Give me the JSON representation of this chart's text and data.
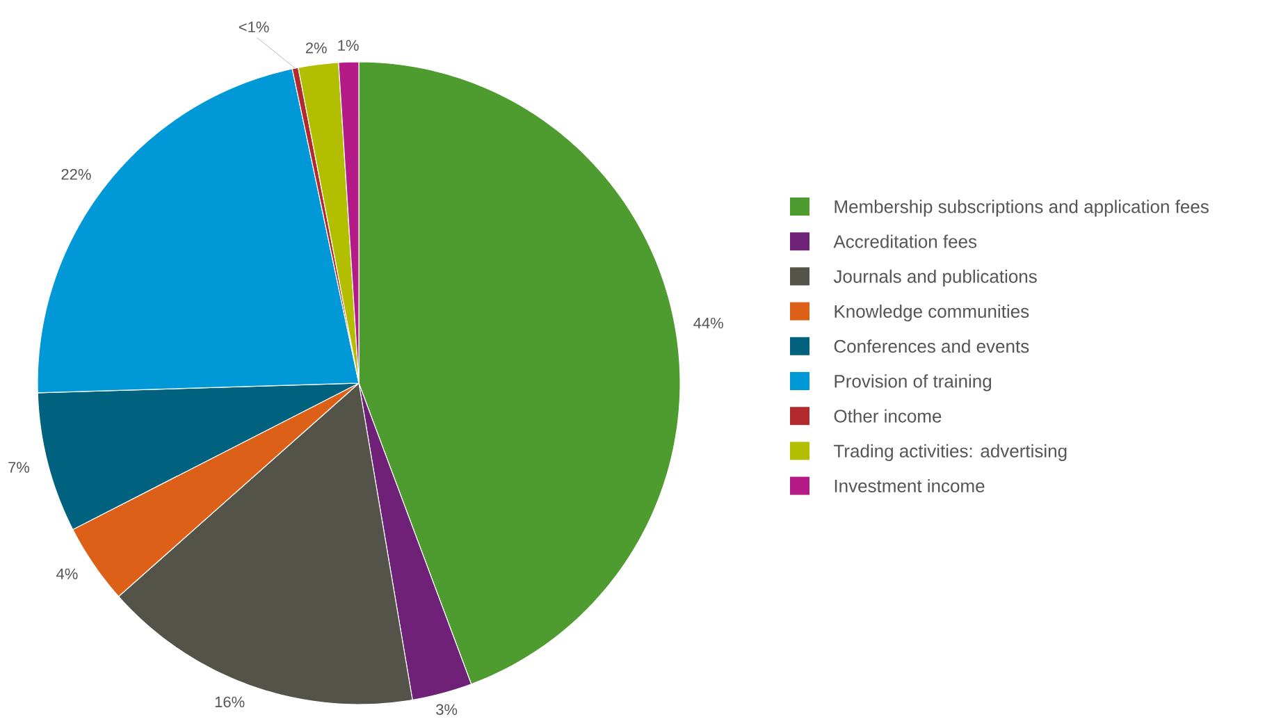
{
  "chart_data": {
    "type": "pie",
    "categories": [
      "Membership subscriptions and application fees",
      "Accreditation fees",
      "Journals and publications",
      "Knowledge communities",
      "Conferences and events",
      "Provision of training",
      "Other income",
      "Trading activities: advertising",
      "Investment income"
    ],
    "values": [
      44,
      3,
      16,
      4,
      7,
      22,
      0.3,
      2,
      1
    ],
    "value_labels": [
      "44%",
      "3%",
      "16%",
      "4%",
      "7%",
      "22%",
      "<1%",
      "2%",
      "1%"
    ],
    "colors": [
      "#4e9c2f",
      "#6f2177",
      "#53534a",
      "#dc6017",
      "#00627e",
      "#0098d6",
      "#b22a2e",
      "#b4be00",
      "#b51b86"
    ],
    "legend": "right"
  }
}
